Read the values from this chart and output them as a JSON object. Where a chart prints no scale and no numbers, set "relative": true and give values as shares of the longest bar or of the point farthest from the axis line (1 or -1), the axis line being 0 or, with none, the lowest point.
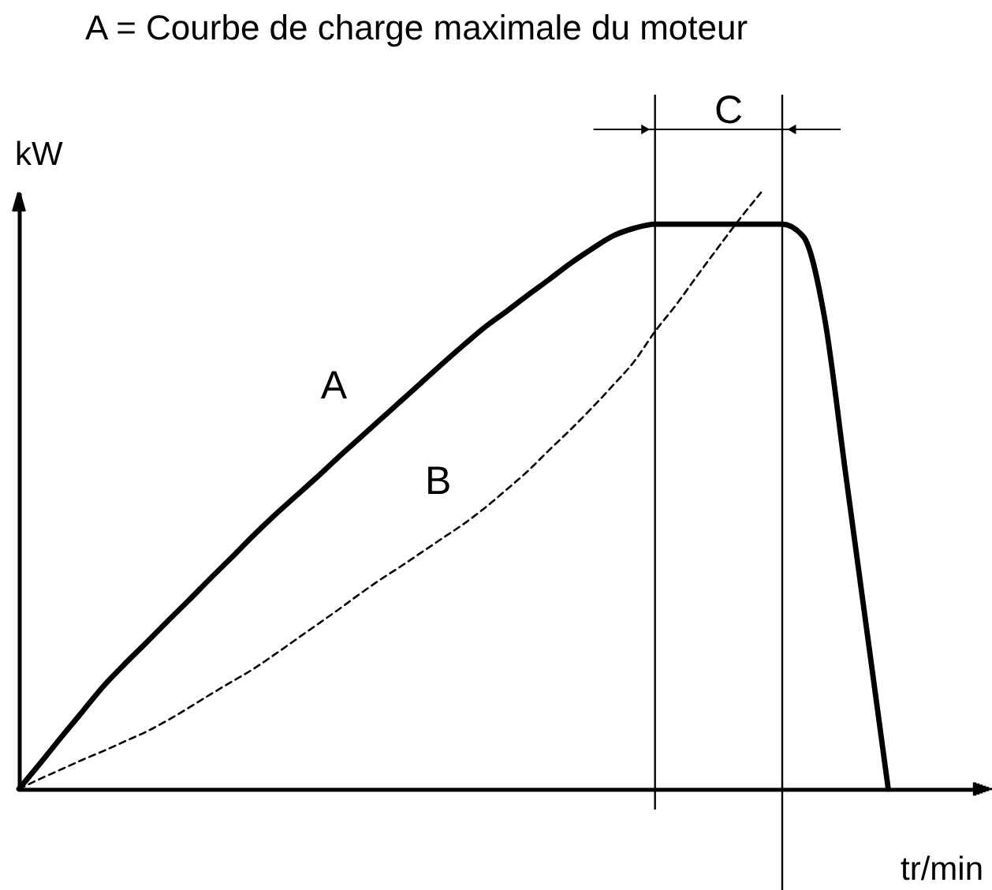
{
  "chart_data": {
    "type": "line",
    "title": "A = Courbe de charge maximale du moteur",
    "xlabel": "tr/min",
    "ylabel": "kW",
    "relative": true,
    "categories": [
      null,
      null,
      null,
      null,
      null,
      null,
      null,
      null,
      null,
      null,
      null,
      null,
      null,
      null,
      null,
      null,
      null,
      null,
      null,
      null,
      null,
      null,
      null,
      null,
      null,
      null,
      null,
      null,
      null,
      null,
      null,
      null,
      null,
      null,
      null,
      null,
      null,
      null,
      null,
      null,
      null,
      null,
      null,
      null,
      null,
      null
    ],
    "series": [
      {
        "name": "A",
        "color": "#000000",
        "line_style": "solid",
        "values": [
          0,
          0.043,
          0.087,
          0.13,
          0.173,
          0.21,
          0.245,
          0.281,
          0.316,
          0.352,
          0.387,
          0.423,
          0.457,
          0.489,
          0.521,
          0.554,
          0.586,
          0.618,
          0.65,
          0.682,
          0.714,
          0.745,
          0.775,
          0.801,
          0.828,
          0.854,
          0.881,
          0.905,
          0.927,
          0.94,
          0.947,
          0.947,
          0.947,
          0.947,
          0.947,
          0.947,
          0.947,
          0.926,
          0.789,
          0.526,
          0.263,
          0,
          null,
          null,
          null,
          null
        ]
      },
      {
        "name": "B",
        "color": "#000000",
        "line_style": "dashed",
        "values": [
          0,
          0.017,
          0.033,
          0.049,
          0.064,
          0.08,
          0.096,
          0.115,
          0.136,
          0.158,
          0.179,
          0.2,
          0.224,
          0.249,
          0.274,
          0.299,
          0.325,
          0.35,
          0.373,
          0.397,
          0.421,
          0.445,
          0.472,
          0.502,
          0.533,
          0.568,
          0.602,
          0.638,
          0.676,
          0.716,
          0.767,
          0.812,
          0.861,
          0.909,
          0.956,
          1.0,
          null,
          null,
          null,
          null,
          null,
          null,
          null,
          null,
          null,
          null
        ]
      }
    ],
    "annotations": [
      "C"
    ]
  }
}
